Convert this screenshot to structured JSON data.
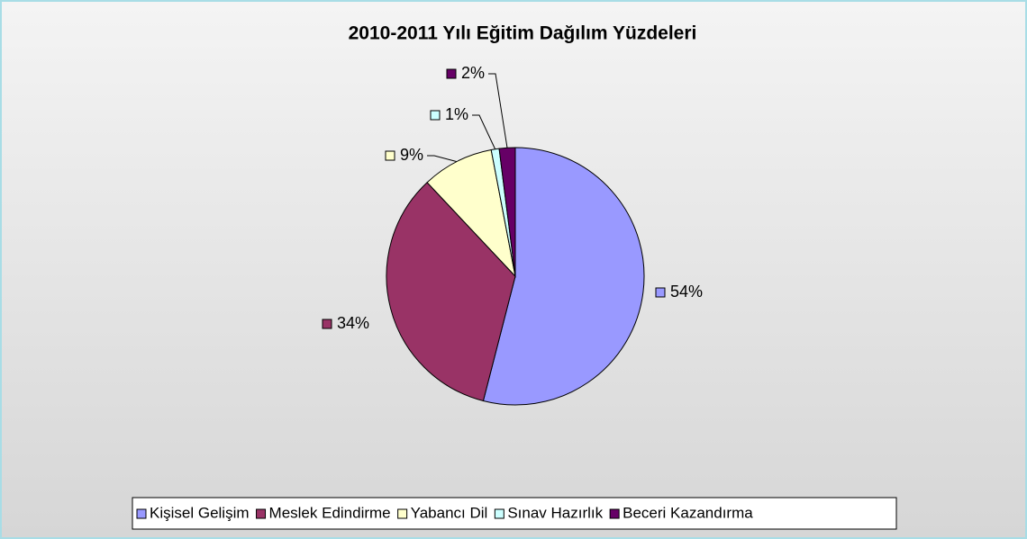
{
  "chart_data": {
    "type": "pie",
    "title": "2010-2011 Yılı Eğitim Dağılım Yüzdeleri",
    "categories": [
      "Kişisel Gelişim",
      "Meslek Edindirme",
      "Yabancı Dil",
      "Sınav Hazırlık",
      "Beceri Kazandırma"
    ],
    "values": [
      54,
      34,
      9,
      1,
      2
    ],
    "value_labels": [
      "54%",
      "34%",
      "9%",
      "1%",
      "2%"
    ],
    "colors": [
      "#9999ff",
      "#993366",
      "#ffffcc",
      "#ccffff",
      "#660066"
    ],
    "legend": "bottom"
  }
}
